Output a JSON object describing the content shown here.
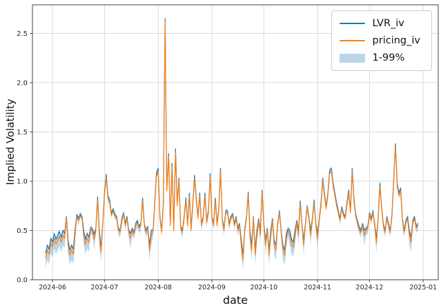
{
  "figure": {
    "xlabel": "date",
    "ylabel": "Implied Volatility"
  },
  "colors": {
    "grid": "#d9d9d9",
    "frame": "#424242",
    "tick_text": "#262626",
    "background": "#ffffff",
    "lvr_blue": "#1f77b4",
    "pricing_orange": "#ff7f0e",
    "band_fill": "#1f77b4"
  },
  "chart_data": {
    "type": "line",
    "title": "",
    "xlabel": "date",
    "ylabel": "Implied Volatility",
    "x_start_date": "2024-05-28",
    "x_freq": "daily",
    "xlim_days": [
      -7.6,
      226.7
    ],
    "ylim": [
      0,
      2.79
    ],
    "grid": true,
    "legend_position": "upper right",
    "yticks": [
      0.0,
      0.5,
      1.0,
      1.5,
      2.0,
      2.5
    ],
    "ytick_labels": [
      "0.0",
      "0.5",
      "1.0",
      "1.5",
      "2.0",
      "2.5"
    ],
    "xticks_day_offsets": [
      4,
      34,
      65,
      96,
      126,
      157,
      187,
      218
    ],
    "xtick_labels": [
      "2024-06",
      "2024-07",
      "2024-08",
      "2024-09",
      "2024-10",
      "2024-11",
      "2024-12",
      "2025-01"
    ],
    "series": [
      {
        "name": "LVR_iv",
        "color": "#1f77b4",
        "values": [
          0.27,
          0.35,
          0.31,
          0.42,
          0.38,
          0.47,
          0.41,
          0.45,
          0.49,
          0.43,
          0.5,
          0.47,
          0.64,
          0.4,
          0.3,
          0.35,
          0.31,
          0.5,
          0.66,
          0.62,
          0.67,
          0.64,
          0.5,
          0.41,
          0.47,
          0.43,
          0.53,
          0.52,
          0.46,
          0.52,
          0.84,
          0.5,
          0.33,
          0.57,
          0.88,
          1.07,
          0.85,
          0.81,
          0.67,
          0.72,
          0.66,
          0.64,
          0.52,
          0.5,
          0.62,
          0.68,
          0.57,
          0.64,
          0.5,
          0.47,
          0.52,
          0.48,
          0.57,
          0.6,
          0.54,
          0.57,
          0.83,
          0.57,
          0.5,
          0.54,
          0.35,
          0.5,
          0.5,
          0.78,
          1.08,
          1.13,
          0.64,
          0.5,
          0.78,
          2.65,
          0.93,
          1.28,
          0.57,
          1.18,
          0.52,
          1.33,
          0.78,
          1.03,
          0.54,
          0.5,
          0.64,
          0.83,
          0.57,
          0.88,
          0.52,
          0.78,
          1.06,
          0.83,
          0.64,
          0.88,
          0.57,
          0.64,
          0.88,
          0.6,
          0.7,
          1.08,
          0.64,
          0.57,
          0.83,
          0.57,
          0.72,
          1.13,
          0.62,
          0.52,
          0.7,
          0.7,
          0.57,
          0.64,
          0.67,
          0.57,
          0.64,
          0.52,
          0.57,
          0.4,
          0.25,
          0.52,
          0.64,
          0.89,
          0.5,
          0.35,
          0.64,
          0.3,
          0.5,
          0.62,
          0.5,
          0.91,
          0.57,
          0.4,
          0.52,
          0.3,
          0.5,
          0.62,
          0.4,
          0.35,
          0.57,
          0.7,
          0.5,
          0.35,
          0.3,
          0.47,
          0.52,
          0.5,
          0.41,
          0.38,
          0.5,
          0.6,
          0.5,
          0.8,
          0.57,
          0.4,
          0.57,
          0.75,
          0.64,
          0.5,
          0.62,
          0.81,
          0.57,
          0.47,
          0.62,
          0.78,
          1.03,
          0.88,
          0.74,
          0.88,
          1.11,
          1.13,
          0.98,
          0.88,
          0.78,
          0.7,
          0.62,
          0.74,
          0.67,
          0.64,
          0.78,
          0.91,
          0.7,
          1.13,
          0.83,
          0.67,
          0.6,
          0.54,
          0.5,
          0.57,
          0.5,
          0.52,
          0.54,
          0.68,
          0.62,
          0.7,
          0.57,
          0.42,
          0.62,
          0.98,
          0.74,
          0.57,
          0.5,
          0.64,
          0.57,
          0.5,
          0.67,
          1.03,
          1.38,
          0.98,
          0.88,
          0.93,
          0.62,
          0.5,
          0.6,
          0.64,
          0.5,
          0.43,
          0.6,
          0.64,
          0.54,
          0.57
        ]
      },
      {
        "name": "pricing_iv",
        "color": "#ff7f0e",
        "values": [
          0.22,
          0.3,
          0.26,
          0.37,
          0.33,
          0.42,
          0.36,
          0.4,
          0.44,
          0.38,
          0.45,
          0.42,
          0.62,
          0.35,
          0.25,
          0.3,
          0.26,
          0.45,
          0.64,
          0.6,
          0.65,
          0.62,
          0.45,
          0.36,
          0.42,
          0.38,
          0.51,
          0.5,
          0.41,
          0.5,
          0.81,
          0.45,
          0.28,
          0.55,
          0.85,
          1.04,
          0.82,
          0.78,
          0.65,
          0.7,
          0.64,
          0.62,
          0.5,
          0.48,
          0.6,
          0.66,
          0.55,
          0.62,
          0.48,
          0.42,
          0.5,
          0.46,
          0.55,
          0.58,
          0.52,
          0.55,
          0.8,
          0.55,
          0.48,
          0.52,
          0.3,
          0.45,
          0.48,
          0.75,
          1.05,
          1.1,
          0.62,
          0.48,
          0.75,
          2.62,
          0.9,
          1.25,
          0.55,
          1.15,
          0.5,
          1.3,
          0.75,
          1.0,
          0.52,
          0.48,
          0.62,
          0.8,
          0.55,
          0.85,
          0.5,
          0.75,
          1.03,
          0.8,
          0.62,
          0.85,
          0.55,
          0.62,
          0.85,
          0.58,
          0.68,
          1.05,
          0.62,
          0.55,
          0.8,
          0.55,
          0.7,
          1.1,
          0.6,
          0.5,
          0.68,
          0.68,
          0.55,
          0.62,
          0.65,
          0.55,
          0.62,
          0.5,
          0.55,
          0.35,
          0.2,
          0.5,
          0.62,
          0.86,
          0.45,
          0.3,
          0.62,
          0.25,
          0.45,
          0.6,
          0.45,
          0.88,
          0.55,
          0.35,
          0.5,
          0.25,
          0.45,
          0.6,
          0.35,
          0.3,
          0.55,
          0.68,
          0.48,
          0.3,
          0.25,
          0.42,
          0.5,
          0.45,
          0.36,
          0.33,
          0.45,
          0.58,
          0.45,
          0.77,
          0.55,
          0.35,
          0.55,
          0.73,
          0.62,
          0.45,
          0.6,
          0.78,
          0.55,
          0.42,
          0.6,
          0.75,
          1.0,
          0.85,
          0.72,
          0.85,
          1.08,
          1.1,
          0.95,
          0.85,
          0.75,
          0.68,
          0.6,
          0.72,
          0.65,
          0.62,
          0.75,
          0.88,
          0.68,
          1.1,
          0.8,
          0.65,
          0.58,
          0.52,
          0.48,
          0.55,
          0.45,
          0.5,
          0.52,
          0.66,
          0.6,
          0.68,
          0.55,
          0.37,
          0.6,
          0.95,
          0.72,
          0.55,
          0.48,
          0.62,
          0.55,
          0.48,
          0.65,
          1.0,
          1.35,
          0.95,
          0.85,
          0.9,
          0.6,
          0.48,
          0.58,
          0.62,
          0.45,
          0.38,
          0.58,
          0.62,
          0.52,
          0.55
        ]
      }
    ],
    "band": {
      "label": "1-99%",
      "color": "#1f77b4",
      "opacity": 0.3,
      "lo": [
        0.12,
        0.2,
        0.16,
        0.27,
        0.23,
        0.32,
        0.26,
        0.3,
        0.34,
        0.28,
        0.35,
        0.32,
        0.6,
        0.25,
        0.15,
        0.2,
        0.16,
        0.35,
        0.62,
        0.55,
        0.63,
        0.6,
        0.35,
        0.26,
        0.32,
        0.28,
        0.46,
        0.45,
        0.31,
        0.45,
        0.79,
        0.35,
        0.18,
        0.5,
        0.83,
        1.02,
        0.8,
        0.76,
        0.63,
        0.68,
        0.62,
        0.6,
        0.45,
        0.43,
        0.55,
        0.64,
        0.5,
        0.6,
        0.43,
        0.32,
        0.45,
        0.41,
        0.5,
        0.53,
        0.47,
        0.5,
        0.78,
        0.5,
        0.43,
        0.47,
        0.2,
        0.35,
        0.43,
        0.73,
        1.03,
        1.08,
        0.6,
        0.43,
        0.73,
        2.6,
        0.88,
        1.23,
        0.5,
        1.13,
        0.45,
        1.28,
        0.73,
        0.98,
        0.47,
        0.43,
        0.6,
        0.78,
        0.5,
        0.83,
        0.45,
        0.73,
        1.01,
        0.78,
        0.6,
        0.83,
        0.5,
        0.6,
        0.83,
        0.53,
        0.66,
        1.03,
        0.6,
        0.5,
        0.78,
        0.5,
        0.68,
        1.08,
        0.55,
        0.45,
        0.66,
        0.66,
        0.5,
        0.6,
        0.63,
        0.5,
        0.6,
        0.45,
        0.5,
        0.25,
        0.1,
        0.45,
        0.6,
        0.84,
        0.35,
        0.2,
        0.6,
        0.15,
        0.35,
        0.55,
        0.35,
        0.86,
        0.5,
        0.25,
        0.45,
        0.15,
        0.35,
        0.55,
        0.25,
        0.2,
        0.5,
        0.66,
        0.43,
        0.2,
        0.15,
        0.32,
        0.45,
        0.35,
        0.26,
        0.23,
        0.35,
        0.53,
        0.35,
        0.75,
        0.5,
        0.25,
        0.5,
        0.71,
        0.6,
        0.35,
        0.55,
        0.76,
        0.5,
        0.32,
        0.55,
        0.73,
        0.98,
        0.83,
        0.7,
        0.83,
        1.06,
        1.08,
        0.93,
        0.83,
        0.73,
        0.66,
        0.55,
        0.7,
        0.63,
        0.6,
        0.73,
        0.86,
        0.66,
        1.08,
        0.78,
        0.63,
        0.53,
        0.47,
        0.43,
        0.5,
        0.35,
        0.45,
        0.47,
        0.64,
        0.55,
        0.66,
        0.5,
        0.27,
        0.55,
        0.93,
        0.7,
        0.5,
        0.43,
        0.6,
        0.5,
        0.43,
        0.63,
        0.98,
        1.33,
        0.93,
        0.83,
        0.88,
        0.55,
        0.43,
        0.53,
        0.6,
        0.35,
        0.28,
        0.53,
        0.6,
        0.47,
        0.5
      ],
      "hi": [
        0.29,
        0.37,
        0.33,
        0.44,
        0.4,
        0.49,
        0.43,
        0.47,
        0.51,
        0.45,
        0.52,
        0.49,
        0.66,
        0.42,
        0.32,
        0.37,
        0.33,
        0.52,
        0.68,
        0.64,
        0.69,
        0.66,
        0.52,
        0.43,
        0.49,
        0.45,
        0.55,
        0.54,
        0.48,
        0.54,
        0.86,
        0.52,
        0.35,
        0.59,
        0.9,
        1.09,
        0.87,
        0.83,
        0.69,
        0.74,
        0.68,
        0.66,
        0.54,
        0.52,
        0.64,
        0.7,
        0.59,
        0.66,
        0.52,
        0.49,
        0.54,
        0.5,
        0.59,
        0.62,
        0.56,
        0.59,
        0.85,
        0.59,
        0.52,
        0.56,
        0.37,
        0.52,
        0.52,
        0.8,
        1.1,
        1.15,
        0.66,
        0.52,
        0.8,
        2.67,
        0.95,
        1.3,
        0.59,
        1.2,
        0.54,
        1.35,
        0.8,
        1.05,
        0.56,
        0.52,
        0.66,
        0.85,
        0.59,
        0.9,
        0.54,
        0.8,
        1.08,
        0.85,
        0.66,
        0.9,
        0.59,
        0.66,
        0.9,
        0.62,
        0.72,
        1.1,
        0.66,
        0.59,
        0.85,
        0.59,
        0.74,
        1.15,
        0.64,
        0.54,
        0.72,
        0.72,
        0.59,
        0.66,
        0.69,
        0.59,
        0.66,
        0.54,
        0.59,
        0.42,
        0.27,
        0.54,
        0.66,
        0.91,
        0.52,
        0.37,
        0.66,
        0.32,
        0.52,
        0.64,
        0.52,
        0.93,
        0.59,
        0.42,
        0.54,
        0.32,
        0.52,
        0.64,
        0.42,
        0.37,
        0.59,
        0.72,
        0.52,
        0.37,
        0.32,
        0.49,
        0.54,
        0.52,
        0.43,
        0.4,
        0.52,
        0.62,
        0.52,
        0.82,
        0.59,
        0.42,
        0.59,
        0.77,
        0.66,
        0.52,
        0.64,
        0.83,
        0.59,
        0.49,
        0.64,
        0.8,
        1.05,
        0.9,
        0.76,
        0.9,
        1.13,
        1.15,
        1.0,
        0.9,
        0.8,
        0.72,
        0.64,
        0.76,
        0.69,
        0.66,
        0.8,
        0.93,
        0.72,
        1.15,
        0.85,
        0.69,
        0.62,
        0.56,
        0.52,
        0.59,
        0.52,
        0.54,
        0.56,
        0.7,
        0.64,
        0.72,
        0.59,
        0.44,
        0.64,
        1.0,
        0.76,
        0.59,
        0.52,
        0.66,
        0.59,
        0.52,
        0.69,
        1.05,
        1.4,
        1.0,
        0.9,
        0.95,
        0.64,
        0.52,
        0.62,
        0.66,
        0.52,
        0.45,
        0.62,
        0.66,
        0.56,
        0.59
      ]
    }
  }
}
